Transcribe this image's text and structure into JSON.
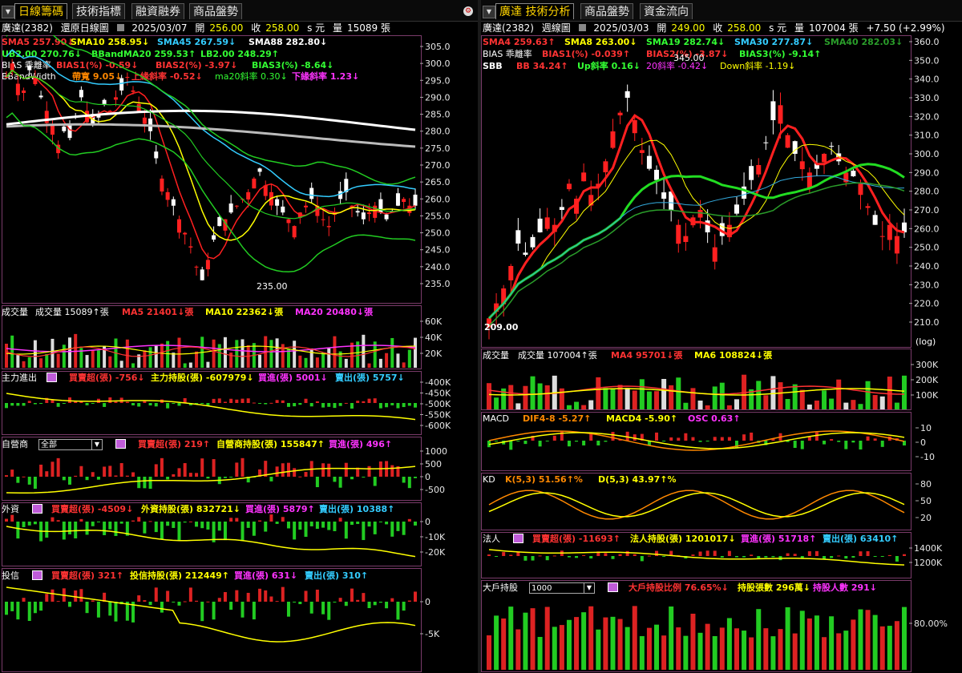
{
  "left": {
    "tabs": [
      "日線籌碼",
      "技術指標",
      "融資融券",
      "商品盤勢"
    ],
    "info": {
      "stock": "廣達(2382)",
      "mode": "還原日線圖",
      "date": "2025/03/07",
      "open_label": "開",
      "open": "256.00",
      "close_label": "收",
      "close": "258.00",
      "unit": "s 元",
      "vol_label": "量",
      "vol": "15089 張"
    },
    "ma_row1": [
      "SMA5 257.90↓",
      "SMA10 258.95↓",
      "SMA45 267.59↓",
      "SMA88 282.80↓"
    ],
    "ma_row2": [
      "UB2.00 270.76↓",
      "BBandMA20 259.53↑",
      "LB2.00 248.29↑"
    ],
    "bias_row": [
      "BIAS 乖離率",
      "BIAS1(%) -0.59↓",
      "BIAS2(%) -3.97↓",
      "BIAS3(%) -8.64↓"
    ],
    "bb_row": [
      "BBandWidth",
      "帶寬 9.05↓",
      "上緣斜率 -0.52↓",
      "ma20斜率 0.30↓",
      "下緣斜率 1.23↓"
    ],
    "price_ticks": [
      "305.0",
      "300.0",
      "295.0",
      "290.0",
      "285.0",
      "280.0",
      "275.0",
      "270.0",
      "265.0",
      "260.0",
      "255.0",
      "250.0",
      "245.0",
      "240.0",
      "235.0"
    ],
    "low_mark": "235.00",
    "vol_panel": {
      "title": "成交量",
      "items": [
        "成交量 15089↑張",
        "MA5 21401↓張",
        "MA10 22362↓張",
        "MA20 20480↓張"
      ],
      "ticks": [
        "60K",
        "40K",
        "20K"
      ]
    },
    "main_force": {
      "title": "主力進出",
      "items": [
        "買賣超(張) -756↓",
        "主力持股(張) -607979↓",
        "買進(張) 5001↓",
        "賣出(張) 5757↓"
      ],
      "ticks": [
        "-400K",
        "-450K",
        "-500K",
        "-550K",
        "-600K"
      ]
    },
    "dealer": {
      "title": "自營商",
      "select": "全部",
      "items": [
        "買賣超(張) 219↑",
        "自營商持股(張) 155847↑",
        "買進(張) 496↑"
      ],
      "ticks": [
        "1000",
        "500",
        "0",
        "-500"
      ]
    },
    "foreign": {
      "title": "外資",
      "items": [
        "買賣超(張) -4509↓",
        "外資持股(張) 832721↓",
        "買進(張) 5879↑",
        "賣出(張) 10388↑"
      ],
      "ticks": [
        "0",
        "-10K",
        "-20K"
      ]
    },
    "trust": {
      "title": "投信",
      "items": [
        "買賣超(張) 321↑",
        "投信持股(張) 212449↑",
        "買進(張) 631↓",
        "賣出(張) 310↑"
      ],
      "ticks": [
        "0",
        "-5K"
      ]
    }
  },
  "right": {
    "tabs": [
      "廣達 技術分析",
      "商品盤勢",
      "資金流向"
    ],
    "info": {
      "stock": "廣達(2382)",
      "mode": "週線圖",
      "date": "2025/03/03",
      "open_label": "開",
      "open": "249.00",
      "close_label": "收",
      "close": "258.00",
      "unit": "s 元",
      "vol_label": "量",
      "vol": "107004 張",
      "change": "+7.50 (+2.99%)"
    },
    "ma_row": [
      "SMA4 259.63↑",
      "SMA8 263.00↓",
      "SMA19 282.74↓",
      "SMA30 277.87↓",
      "SMA40 282.03↓"
    ],
    "bias_row": [
      "BIAS 乖離率",
      "BIAS1(%) -0.039↑",
      "BIAS2(%) -3.87↓",
      "BIAS3(%) -9.14↑"
    ],
    "sbb_row": [
      "SBB",
      "BB 34.24↑",
      "Up斜率 0.16↓",
      "20斜率 -0.42↓",
      "Down斜率 -1.19↓"
    ],
    "high_mark": "345.00",
    "low_mark": "209.00",
    "price_ticks": [
      "360.0",
      "350.0",
      "340.0",
      "330.0",
      "320.0",
      "310.0",
      "300.0",
      "290.0",
      "280.0",
      "270.0",
      "260.0",
      "250.0",
      "240.0",
      "230.0",
      "220.0",
      "210.0"
    ],
    "log_label": "(log)",
    "vol_panel": {
      "title": "成交量",
      "items": [
        "成交量 107004↑張",
        "MA4 95701↓張",
        "MA6 108824↓張"
      ],
      "ticks": [
        "300K",
        "200K",
        "100K"
      ]
    },
    "macd": {
      "title": "MACD",
      "items": [
        "DIF4-8 -5.27↑",
        "MACD4 -5.90↑",
        "OSC 0.63↑"
      ],
      "ticks": [
        "10",
        "0",
        "-10"
      ]
    },
    "kd": {
      "title": "KD",
      "items": [
        "K(5,3) 51.56↑%",
        "D(5,3) 43.97↑%"
      ],
      "ticks": [
        "80",
        "50",
        "20"
      ]
    },
    "inst": {
      "title": "法人",
      "items": [
        "買賣超(張) -11693↑",
        "法人持股(張) 1201017↓",
        "買進(張) 51718↑",
        "賣出(張) 63410↑"
      ],
      "ticks": [
        "1400K",
        "1200K"
      ]
    },
    "holders": {
      "title": "大戶持股",
      "select": "1000",
      "items": [
        "大戶持股比例 76.65%↓",
        "持股張數 296萬↓",
        "持股人數 291↓"
      ],
      "ticks": [
        "80.00%"
      ]
    }
  },
  "colors": {
    "up": "#ff2020",
    "down": "#22cc22",
    "panel_border": "#7a3b6a",
    "tab_active": "#ffd400"
  }
}
